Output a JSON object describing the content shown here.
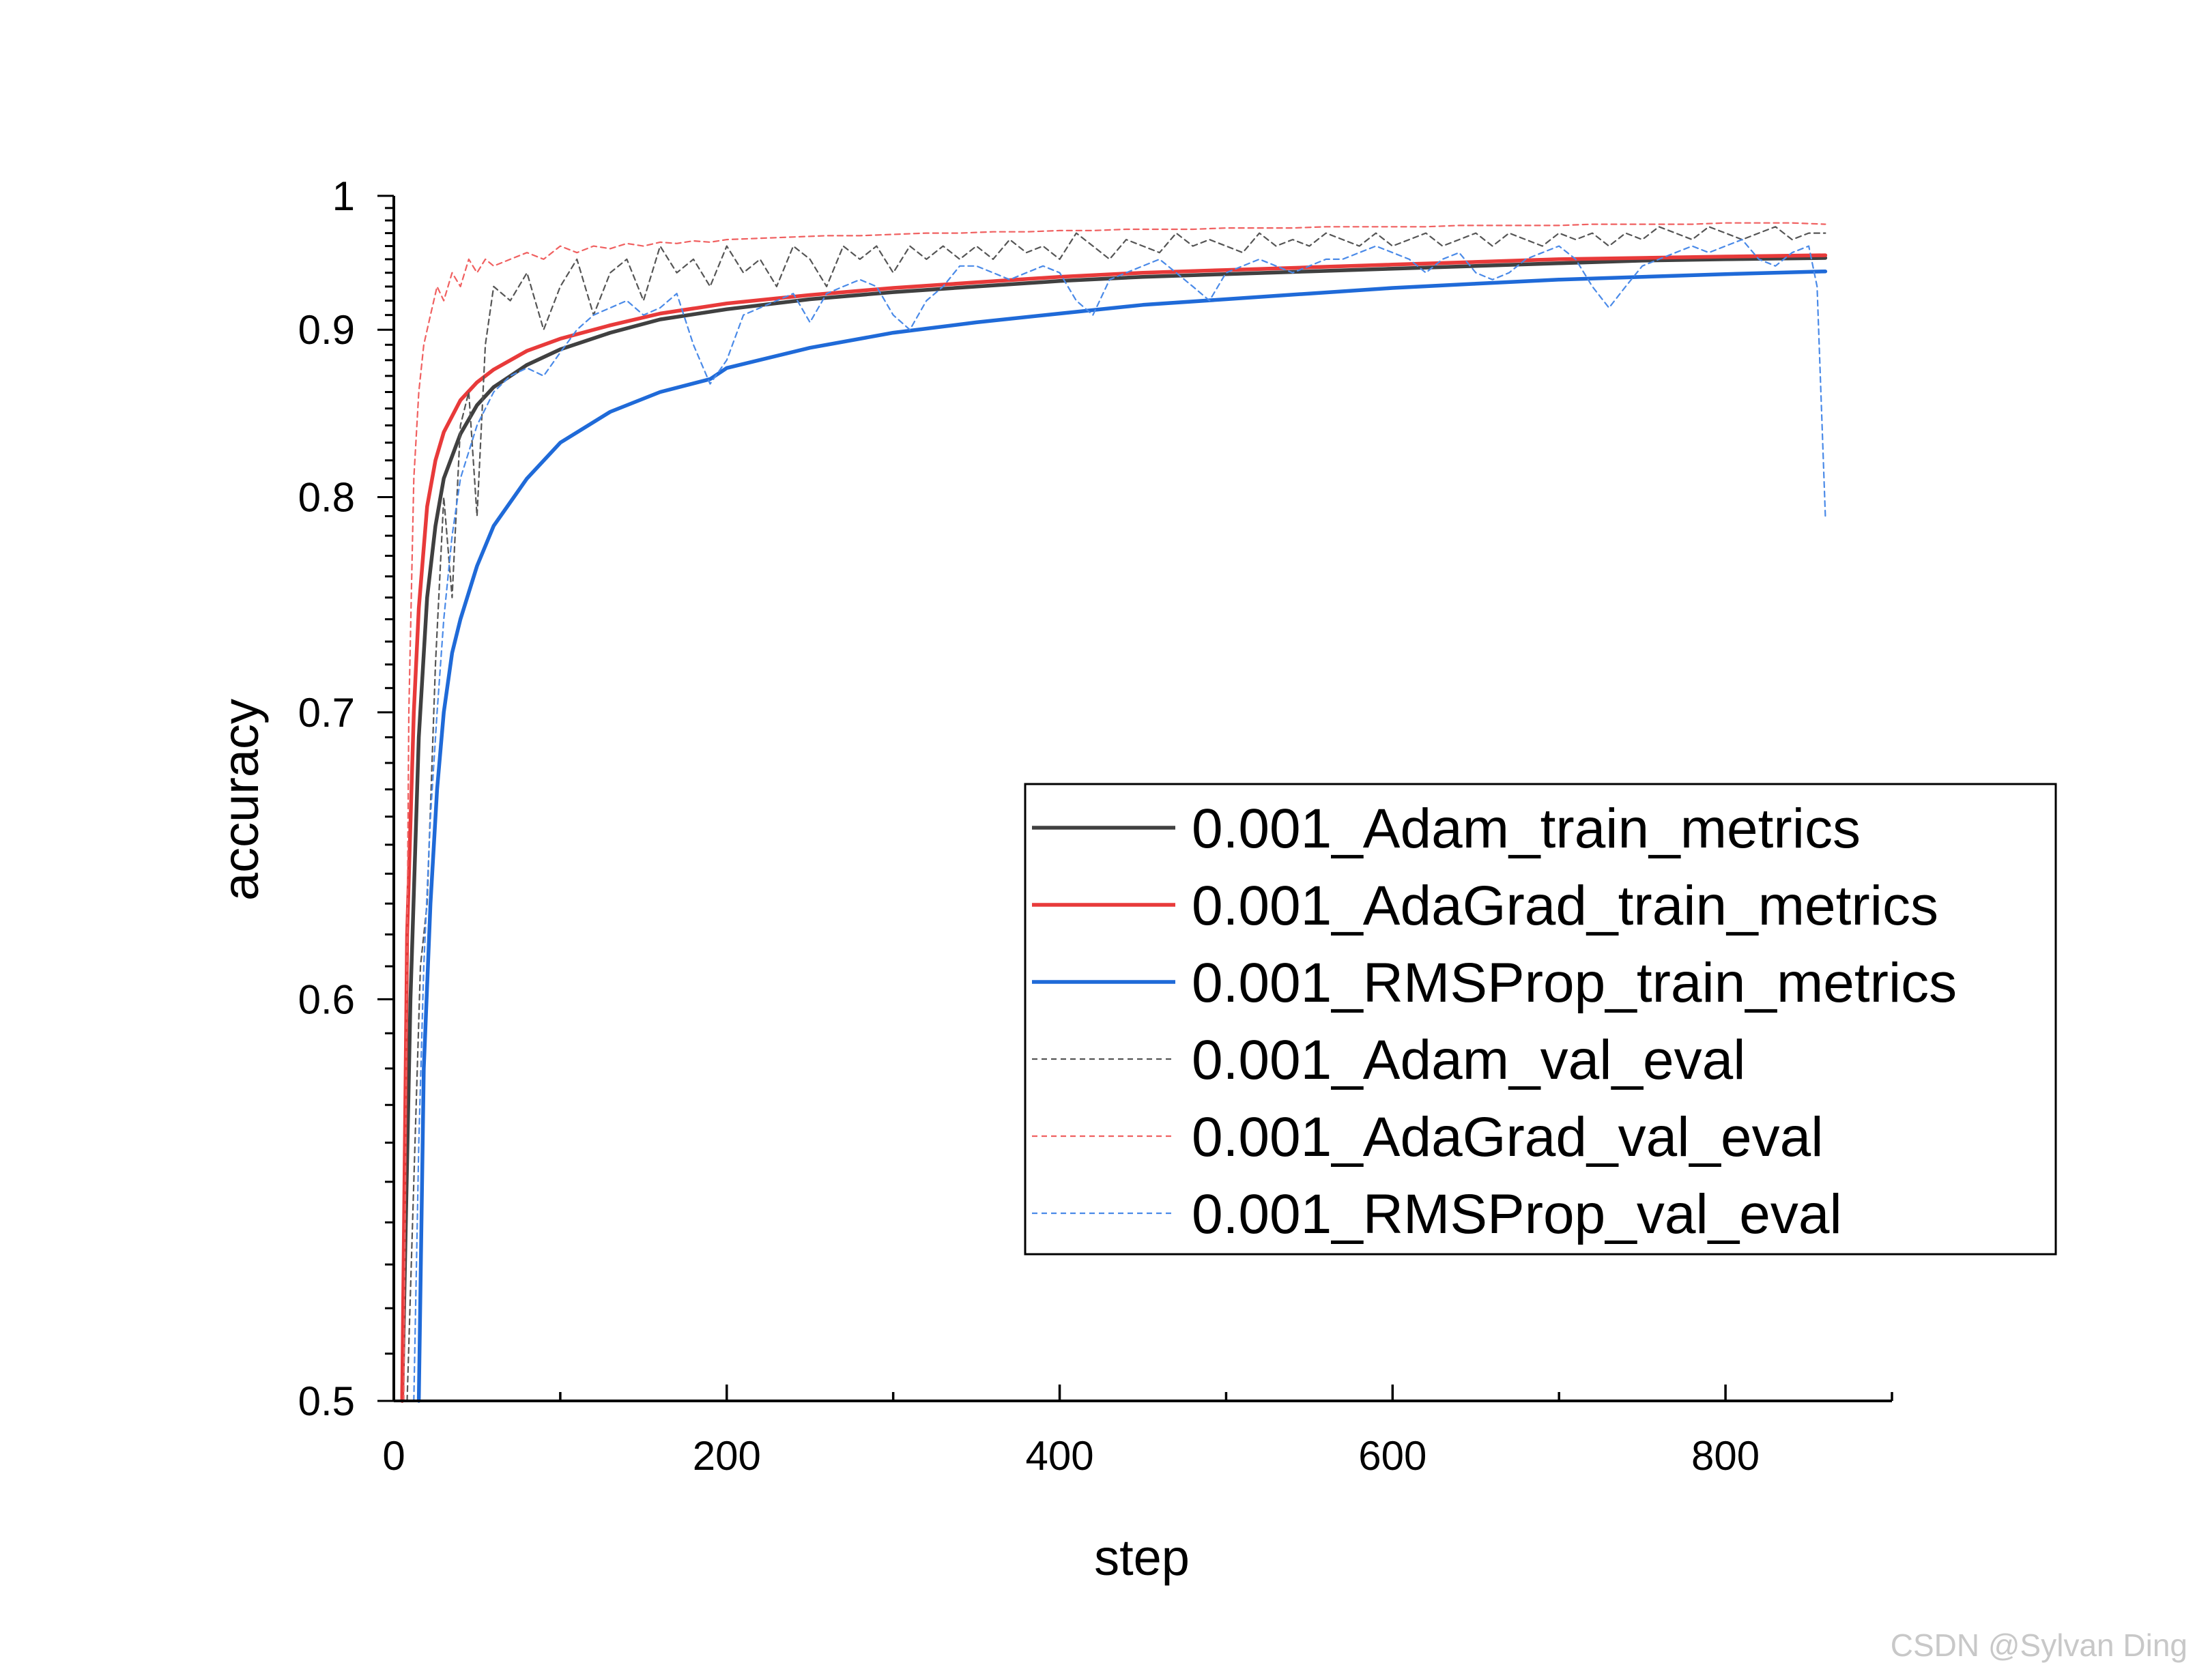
{
  "watermark": "CSDN @Sylvan Ding",
  "chart_data": {
    "type": "line",
    "title": "",
    "xlabel": "step",
    "ylabel": "accuracy",
    "xlim": [
      0,
      900
    ],
    "ylim": [
      0.5,
      1.0
    ],
    "y_scale": "reciprocal",
    "x_ticks": [
      0,
      200,
      400,
      600,
      800
    ],
    "y_ticks": [
      0.5,
      0.6,
      0.7,
      0.8,
      0.9,
      1.0
    ],
    "y_tick_labels": [
      "0.5",
      "0.6",
      "0.7",
      "0.8",
      "0.9",
      "1"
    ],
    "legend_position": "center-right",
    "grid": false,
    "series": [
      {
        "name": "0.001_Adam_train_metrics",
        "color": "#404040",
        "style": "solid",
        "x": [
          5,
          10,
          15,
          20,
          25,
          30,
          40,
          50,
          60,
          80,
          100,
          130,
          160,
          200,
          250,
          300,
          350,
          400,
          450,
          500,
          550,
          600,
          650,
          700,
          750,
          800,
          860
        ],
        "y": [
          0.5,
          0.6,
          0.69,
          0.75,
          0.785,
          0.81,
          0.835,
          0.852,
          0.863,
          0.877,
          0.887,
          0.898,
          0.907,
          0.914,
          0.921,
          0.926,
          0.93,
          0.934,
          0.937,
          0.939,
          0.941,
          0.943,
          0.945,
          0.947,
          0.949,
          0.95,
          0.951
        ]
      },
      {
        "name": "0.001_AdaGrad_train_metrics",
        "color": "#e83a3a",
        "style": "solid",
        "x": [
          5,
          8,
          12,
          15,
          20,
          25,
          30,
          40,
          50,
          60,
          80,
          100,
          130,
          160,
          200,
          250,
          300,
          350,
          400,
          450,
          500,
          550,
          600,
          650,
          700,
          750,
          800,
          860
        ],
        "y": [
          0.5,
          0.62,
          0.7,
          0.745,
          0.795,
          0.82,
          0.836,
          0.855,
          0.866,
          0.874,
          0.886,
          0.894,
          0.903,
          0.911,
          0.918,
          0.924,
          0.929,
          0.933,
          0.937,
          0.94,
          0.942,
          0.944,
          0.946,
          0.948,
          0.95,
          0.951,
          0.952,
          0.953
        ]
      },
      {
        "name": "0.001_RMSProp_train_metrics",
        "color": "#1f6ad8",
        "style": "solid",
        "x": [
          15,
          18,
          22,
          26,
          30,
          35,
          40,
          50,
          60,
          80,
          100,
          130,
          160,
          190,
          200,
          250,
          300,
          350,
          400,
          450,
          500,
          550,
          600,
          650,
          700,
          750,
          800,
          860
        ],
        "y": [
          0.5,
          0.58,
          0.63,
          0.67,
          0.7,
          0.725,
          0.74,
          0.765,
          0.785,
          0.81,
          0.83,
          0.848,
          0.86,
          0.868,
          0.875,
          0.888,
          0.898,
          0.905,
          0.911,
          0.917,
          0.921,
          0.925,
          0.929,
          0.932,
          0.935,
          0.937,
          0.939,
          0.941
        ]
      },
      {
        "name": "0.001_Adam_val_eval",
        "color": "#555555",
        "style": "dashed",
        "x": [
          8,
          12,
          16,
          20,
          25,
          30,
          35,
          40,
          45,
          50,
          55,
          60,
          70,
          80,
          90,
          100,
          110,
          120,
          130,
          140,
          150,
          160,
          170,
          180,
          190,
          200,
          210,
          220,
          230,
          240,
          250,
          260,
          270,
          280,
          290,
          300,
          310,
          320,
          330,
          340,
          350,
          360,
          370,
          380,
          390,
          400,
          410,
          420,
          430,
          440,
          450,
          460,
          470,
          480,
          490,
          500,
          510,
          520,
          530,
          540,
          550,
          560,
          570,
          580,
          590,
          600,
          610,
          620,
          630,
          640,
          650,
          660,
          670,
          680,
          690,
          700,
          710,
          720,
          730,
          740,
          750,
          760,
          770,
          780,
          790,
          800,
          810,
          820,
          830,
          840,
          850,
          860
        ],
        "y": [
          0.5,
          0.55,
          0.61,
          0.63,
          0.72,
          0.8,
          0.75,
          0.84,
          0.86,
          0.79,
          0.89,
          0.93,
          0.92,
          0.94,
          0.9,
          0.93,
          0.95,
          0.91,
          0.94,
          0.95,
          0.92,
          0.96,
          0.94,
          0.95,
          0.93,
          0.96,
          0.94,
          0.95,
          0.93,
          0.96,
          0.95,
          0.93,
          0.96,
          0.95,
          0.96,
          0.94,
          0.96,
          0.95,
          0.96,
          0.95,
          0.96,
          0.95,
          0.965,
          0.955,
          0.96,
          0.95,
          0.97,
          0.96,
          0.95,
          0.965,
          0.96,
          0.955,
          0.97,
          0.96,
          0.965,
          0.96,
          0.955,
          0.97,
          0.96,
          0.965,
          0.96,
          0.97,
          0.965,
          0.96,
          0.97,
          0.96,
          0.965,
          0.97,
          0.96,
          0.965,
          0.97,
          0.96,
          0.97,
          0.965,
          0.96,
          0.97,
          0.965,
          0.97,
          0.96,
          0.97,
          0.965,
          0.975,
          0.97,
          0.965,
          0.975,
          0.97,
          0.965,
          0.97,
          0.975,
          0.965,
          0.97,
          0.97
        ]
      },
      {
        "name": "0.001_AdaGrad_val_eval",
        "color": "#f06060",
        "style": "dashed",
        "x": [
          6,
          9,
          12,
          15,
          18,
          22,
          26,
          30,
          35,
          40,
          45,
          50,
          55,
          60,
          70,
          80,
          90,
          100,
          110,
          120,
          130,
          140,
          150,
          160,
          170,
          180,
          190,
          200,
          220,
          240,
          260,
          280,
          300,
          320,
          340,
          360,
          380,
          400,
          420,
          440,
          460,
          480,
          500,
          520,
          540,
          560,
          580,
          600,
          620,
          640,
          660,
          680,
          700,
          720,
          740,
          760,
          780,
          800,
          820,
          840,
          860
        ],
        "y": [
          0.5,
          0.7,
          0.81,
          0.86,
          0.89,
          0.91,
          0.93,
          0.92,
          0.94,
          0.93,
          0.95,
          0.94,
          0.95,
          0.945,
          0.95,
          0.955,
          0.95,
          0.96,
          0.955,
          0.96,
          0.958,
          0.962,
          0.96,
          0.963,
          0.962,
          0.964,
          0.963,
          0.965,
          0.966,
          0.967,
          0.968,
          0.968,
          0.969,
          0.97,
          0.97,
          0.971,
          0.971,
          0.972,
          0.972,
          0.973,
          0.973,
          0.973,
          0.974,
          0.974,
          0.974,
          0.975,
          0.975,
          0.975,
          0.975,
          0.976,
          0.976,
          0.976,
          0.976,
          0.977,
          0.977,
          0.977,
          0.977,
          0.978,
          0.978,
          0.978,
          0.977
        ]
      },
      {
        "name": "0.001_RMSProp_val_eval",
        "color": "#4a8ae8",
        "style": "dashed",
        "x": [
          12,
          15,
          18,
          22,
          26,
          30,
          35,
          40,
          50,
          60,
          70,
          80,
          90,
          100,
          110,
          120,
          130,
          140,
          150,
          160,
          170,
          180,
          190,
          200,
          210,
          220,
          230,
          240,
          250,
          260,
          270,
          280,
          290,
          300,
          310,
          320,
          330,
          340,
          350,
          360,
          370,
          380,
          390,
          400,
          410,
          420,
          430,
          440,
          450,
          460,
          470,
          480,
          490,
          500,
          510,
          520,
          530,
          540,
          550,
          560,
          570,
          580,
          590,
          600,
          610,
          620,
          630,
          640,
          650,
          660,
          670,
          680,
          690,
          700,
          710,
          720,
          730,
          740,
          750,
          760,
          770,
          780,
          790,
          800,
          810,
          820,
          830,
          840,
          850,
          855,
          860
        ],
        "y": [
          0.5,
          0.56,
          0.61,
          0.66,
          0.7,
          0.74,
          0.78,
          0.81,
          0.84,
          0.86,
          0.87,
          0.875,
          0.87,
          0.885,
          0.9,
          0.91,
          0.915,
          0.92,
          0.91,
          0.915,
          0.925,
          0.89,
          0.865,
          0.88,
          0.91,
          0.915,
          0.92,
          0.925,
          0.905,
          0.925,
          0.93,
          0.935,
          0.93,
          0.91,
          0.9,
          0.92,
          0.93,
          0.945,
          0.945,
          0.94,
          0.935,
          0.94,
          0.945,
          0.94,
          0.92,
          0.91,
          0.935,
          0.94,
          0.945,
          0.95,
          0.94,
          0.93,
          0.92,
          0.94,
          0.945,
          0.95,
          0.945,
          0.94,
          0.945,
          0.95,
          0.95,
          0.955,
          0.96,
          0.955,
          0.95,
          0.94,
          0.95,
          0.955,
          0.94,
          0.935,
          0.94,
          0.95,
          0.955,
          0.96,
          0.95,
          0.93,
          0.915,
          0.93,
          0.945,
          0.95,
          0.955,
          0.96,
          0.955,
          0.96,
          0.965,
          0.95,
          0.945,
          0.955,
          0.96,
          0.93,
          0.79
        ]
      }
    ]
  }
}
